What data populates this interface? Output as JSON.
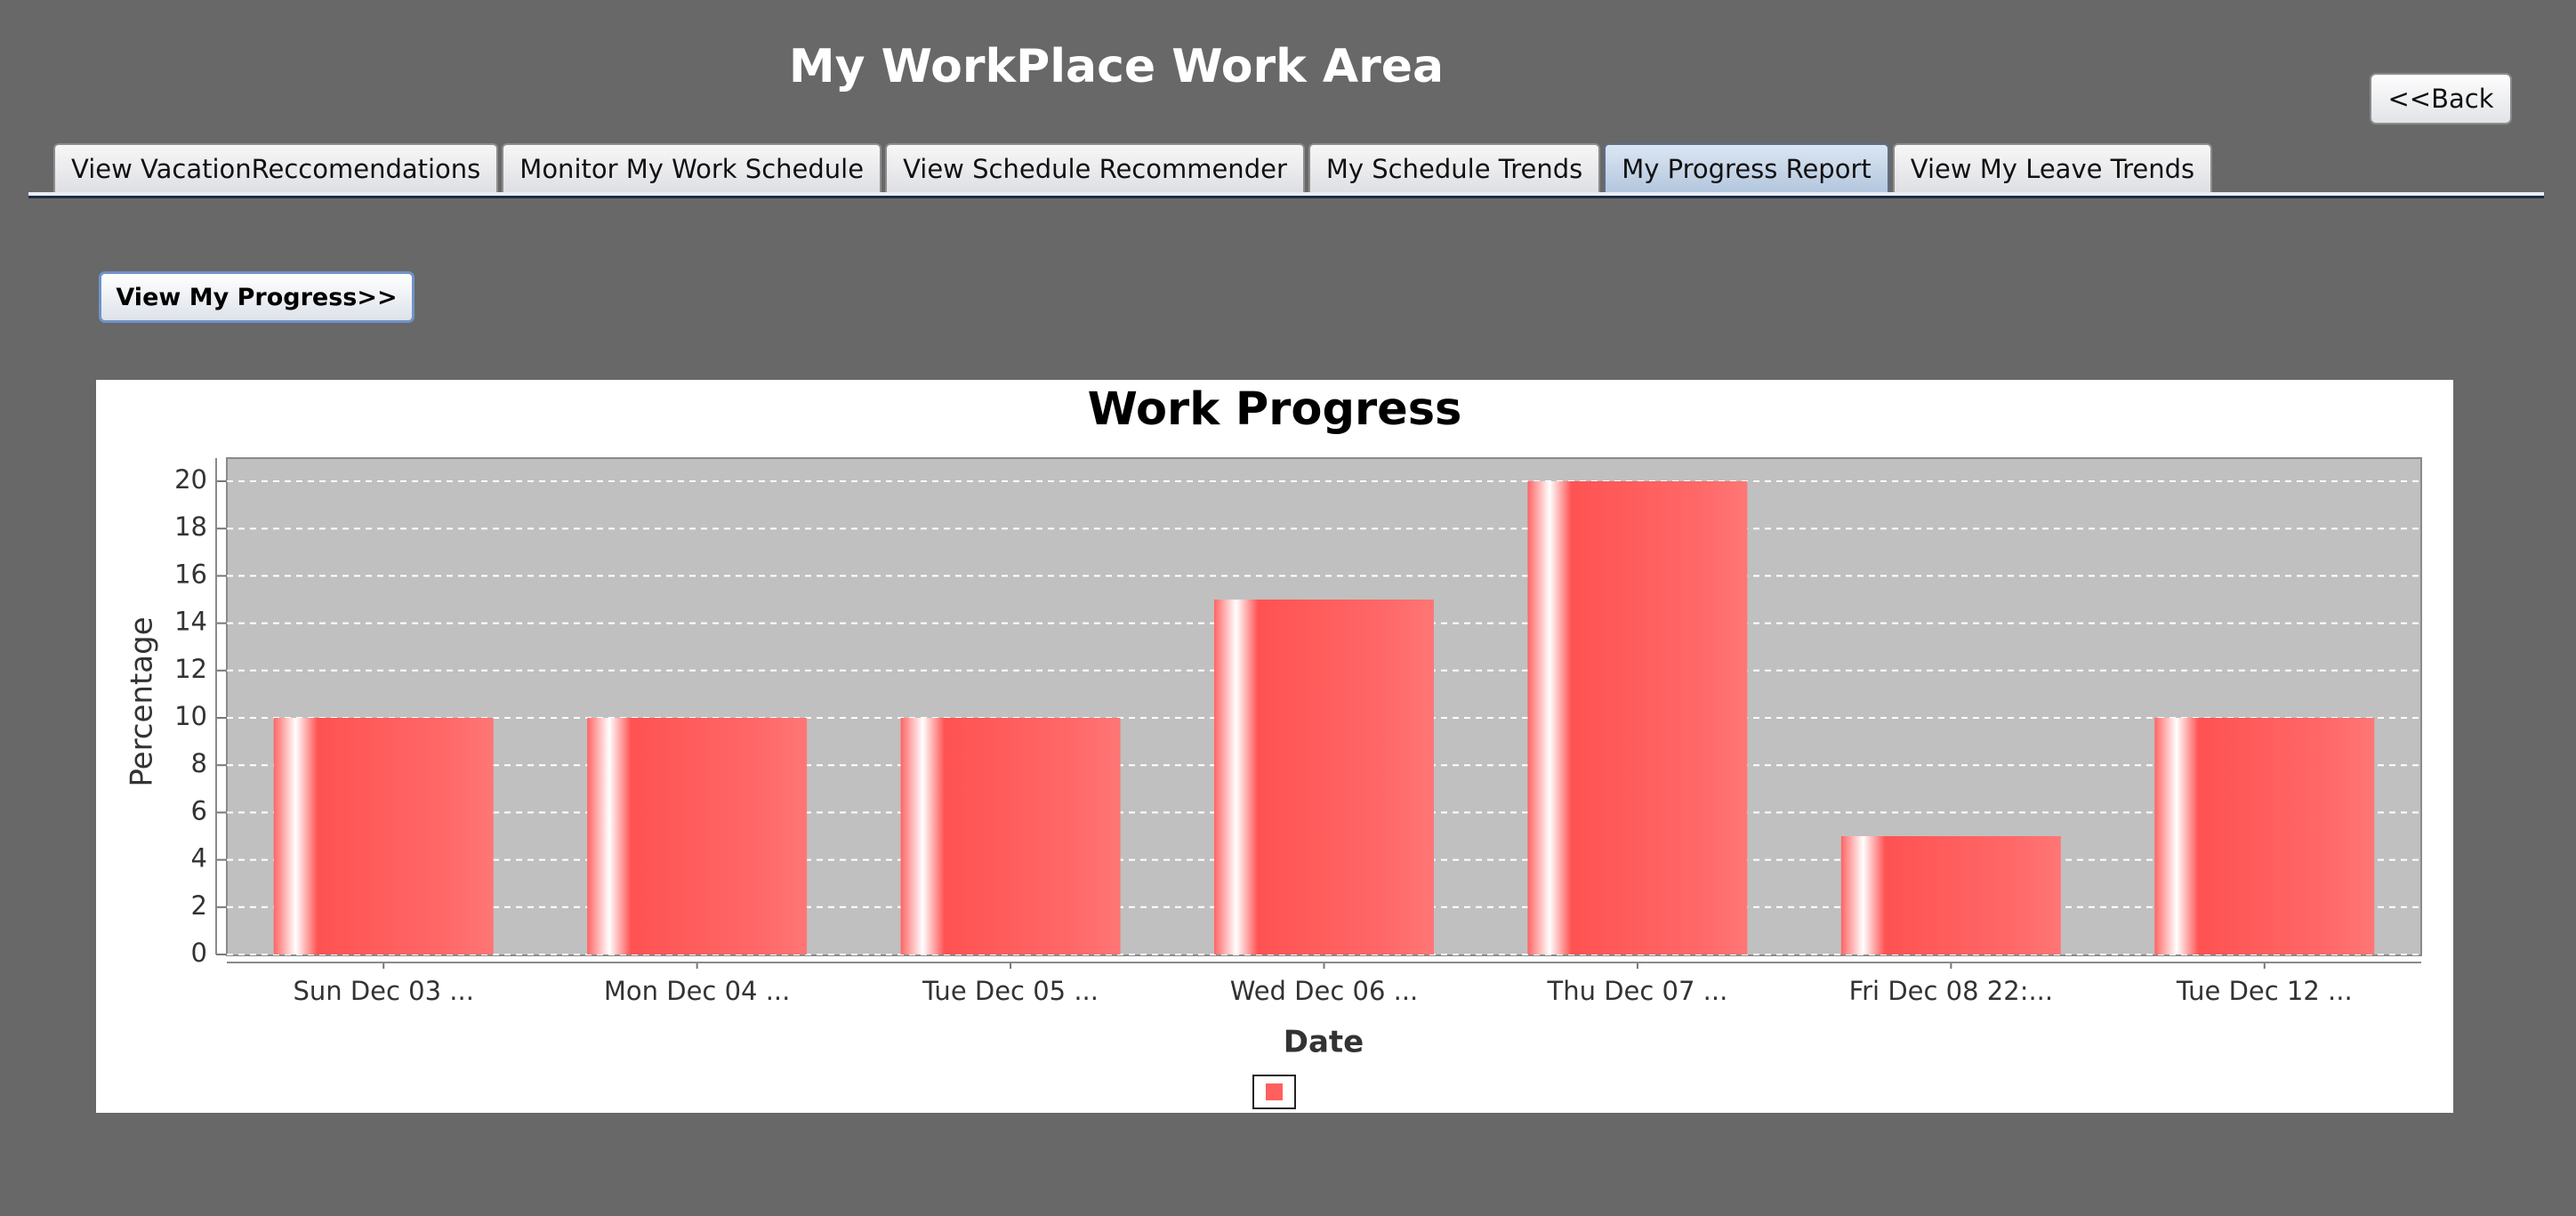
{
  "header": {
    "title": "My WorkPlace Work Area",
    "back_label": "<<Back"
  },
  "tabs": [
    {
      "label": "View VacationReccomendations",
      "active": false
    },
    {
      "label": "Monitor My Work Schedule",
      "active": false
    },
    {
      "label": "View Schedule Recommender",
      "active": false
    },
    {
      "label": "My Schedule Trends",
      "active": false
    },
    {
      "label": "My Progress Report",
      "active": true
    },
    {
      "label": "View My Leave Trends",
      "active": false
    }
  ],
  "actions": {
    "view_progress_label": "View My Progress>>"
  },
  "colors": {
    "background": "#686868",
    "plot_background": "#c0c0c0",
    "bar": "#ff5f5f",
    "active_tab": "#b3c6dd"
  },
  "chart_data": {
    "type": "bar",
    "title": "Work Progress",
    "xlabel": "Date",
    "ylabel": "Percentage",
    "categories": [
      "Sun Dec 03 ...",
      "Mon Dec 04 ...",
      "Tue Dec 05 ...",
      "Wed Dec 06 ...",
      "Thu Dec 07 ...",
      "Fri Dec 08 22:...",
      "Tue Dec 12 ..."
    ],
    "series": [
      {
        "values": [
          10,
          10,
          10,
          15,
          20,
          5,
          10
        ]
      }
    ],
    "ylim": [
      0,
      21
    ],
    "yticks": [
      0,
      2,
      4,
      6,
      8,
      10,
      12,
      14,
      16,
      18,
      20
    ],
    "grid": true,
    "legend": "bottom-center"
  }
}
